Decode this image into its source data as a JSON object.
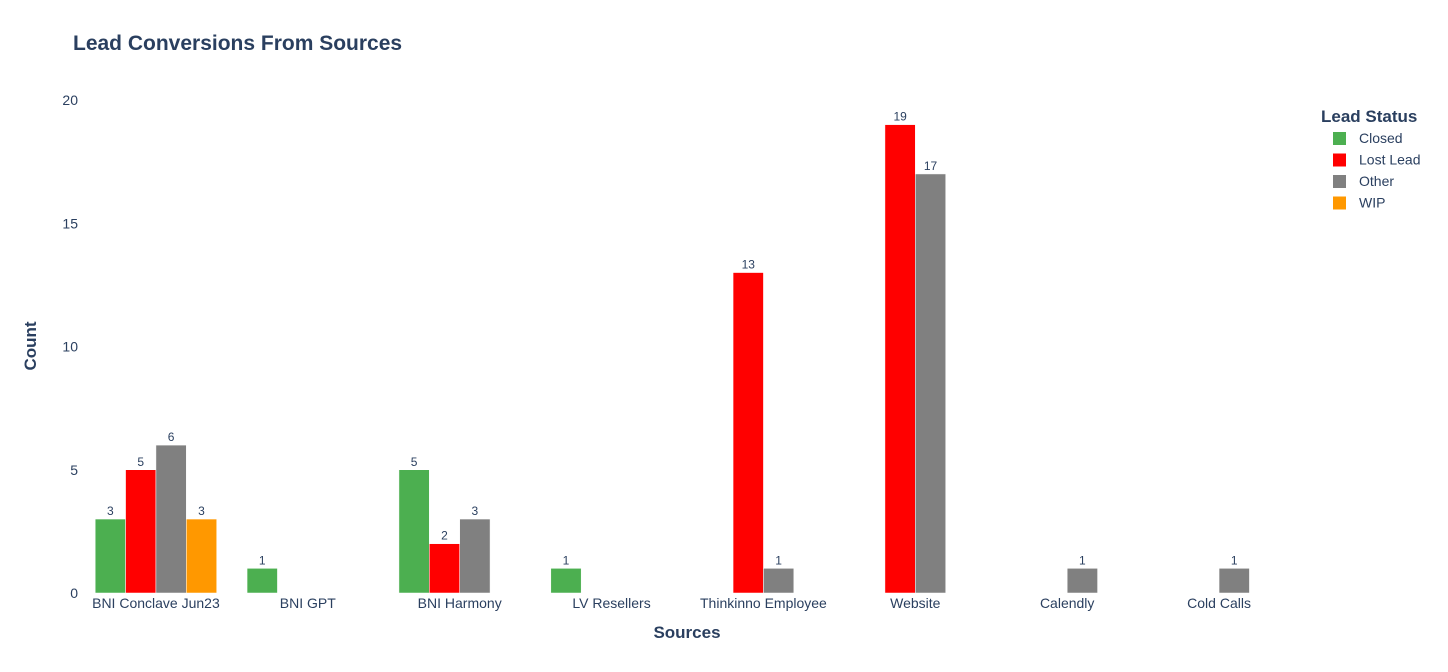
{
  "chart_data": {
    "type": "bar",
    "title": "Lead Conversions From Sources",
    "xlabel": "Sources",
    "ylabel": "Count",
    "ylim": [
      0,
      20
    ],
    "yticks": [
      0,
      5,
      10,
      15,
      20
    ],
    "categories": [
      "BNI Conclave Jun23",
      "BNI GPT",
      "BNI Harmony",
      "LV Resellers",
      "Thinkinno Employee",
      "Website",
      "Calendly",
      "Cold Calls"
    ],
    "series": [
      {
        "name": "Closed",
        "color": "#4caf50",
        "values": [
          3,
          1,
          5,
          1,
          null,
          null,
          null,
          null
        ]
      },
      {
        "name": "Lost Lead",
        "color": "#ff0000",
        "values": [
          5,
          null,
          2,
          null,
          13,
          19,
          null,
          null
        ]
      },
      {
        "name": "Other",
        "color": "#808080",
        "values": [
          6,
          null,
          3,
          null,
          1,
          17,
          1,
          1
        ]
      },
      {
        "name": "WIP",
        "color": "#ff9800",
        "values": [
          3,
          null,
          null,
          null,
          null,
          null,
          null,
          null
        ]
      }
    ],
    "legend_title": "Lead Status",
    "legend_position": "top-right",
    "grid": false
  }
}
